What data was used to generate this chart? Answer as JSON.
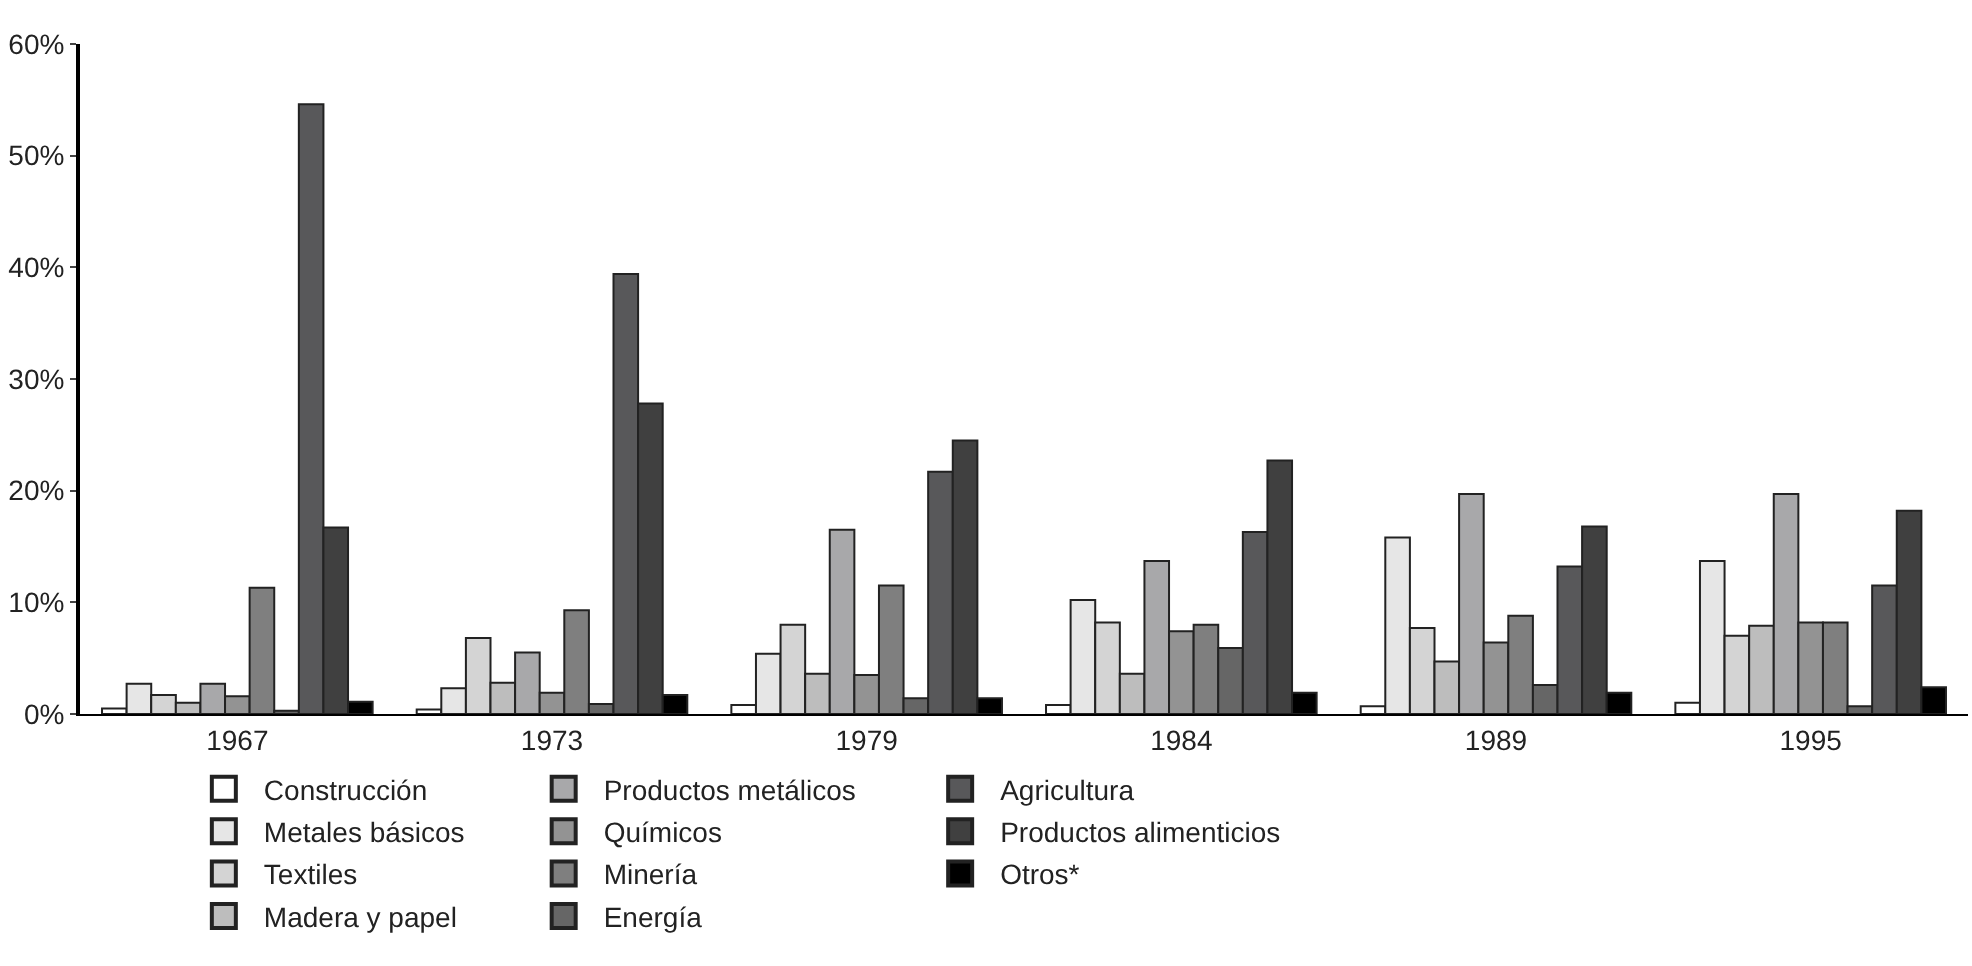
{
  "chart_data": {
    "type": "bar",
    "categories": [
      "1967",
      "1973",
      "1979",
      "1984",
      "1989",
      "1995"
    ],
    "series": [
      {
        "name": "Construcción",
        "color": "#ffffff",
        "values": [
          0.5,
          0.4,
          0.8,
          0.8,
          0.7,
          1.0
        ]
      },
      {
        "name": "Metales básicos",
        "color": "#e6e6e6",
        "values": [
          2.7,
          2.3,
          5.4,
          10.2,
          15.8,
          13.7
        ]
      },
      {
        "name": "Textiles",
        "color": "#d4d4d4",
        "values": [
          1.7,
          6.8,
          8.0,
          8.2,
          7.7,
          7.0
        ]
      },
      {
        "name": "Madera y papel",
        "color": "#bdbdbd",
        "values": [
          1.0,
          2.8,
          3.6,
          3.6,
          4.7,
          7.9
        ]
      },
      {
        "name": "Productos metálicos",
        "color": "#a8a8aa",
        "values": [
          2.7,
          5.5,
          16.5,
          13.7,
          19.7,
          19.7
        ]
      },
      {
        "name": "Químicos",
        "color": "#939393",
        "values": [
          1.6,
          1.9,
          3.5,
          7.4,
          6.4,
          8.2
        ]
      },
      {
        "name": "Minería",
        "color": "#7f7f7f",
        "values": [
          11.3,
          9.3,
          11.5,
          8.0,
          8.8,
          8.2
        ]
      },
      {
        "name": "Energía",
        "color": "#666666",
        "values": [
          0.3,
          0.9,
          1.4,
          5.9,
          2.6,
          0.7
        ]
      },
      {
        "name": "Agricultura",
        "color": "#58585a",
        "values": [
          54.6,
          39.4,
          21.7,
          16.3,
          13.2,
          11.5
        ]
      },
      {
        "name": "Productos alimenticios",
        "color": "#404040",
        "values": [
          16.7,
          27.8,
          24.5,
          22.7,
          16.8,
          18.2
        ]
      },
      {
        "name": "Otros*",
        "color": "#000000",
        "values": [
          1.1,
          1.7,
          1.4,
          1.9,
          1.9,
          2.4
        ]
      }
    ],
    "ylim": [
      0,
      60
    ],
    "yticks": [
      {
        "value": 0,
        "label": "0%"
      },
      {
        "value": 10,
        "label": "10%"
      },
      {
        "value": 20,
        "label": "20%"
      },
      {
        "value": 30,
        "label": "30%"
      },
      {
        "value": 40,
        "label": "40%"
      },
      {
        "value": 50,
        "label": "50%"
      },
      {
        "value": 60,
        "label": "60%"
      }
    ],
    "legend": "bottom"
  }
}
